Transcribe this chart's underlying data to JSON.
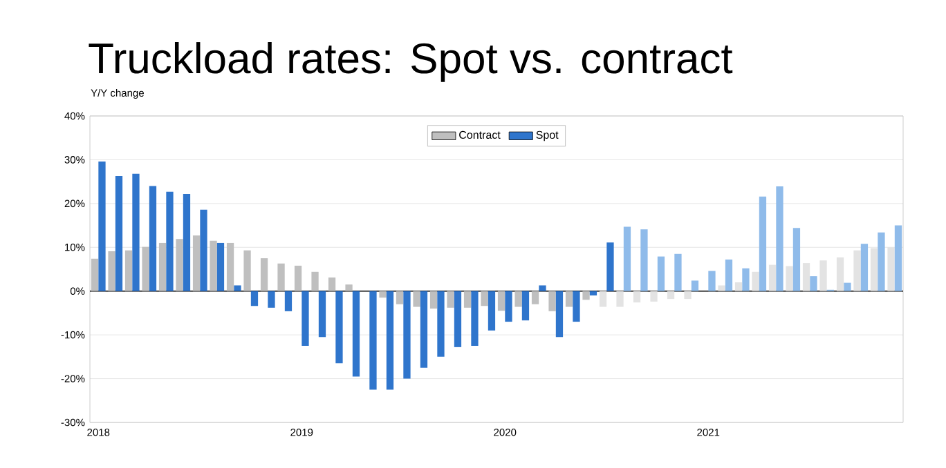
{
  "chart_data": {
    "type": "bar",
    "title": "Truckload rates: Spot vs. contract",
    "ylabel": "Y/Y change",
    "categories": [
      "2018",
      null,
      null,
      null,
      null,
      null,
      null,
      null,
      null,
      null,
      null,
      null,
      "2019",
      null,
      null,
      null,
      null,
      null,
      null,
      null,
      null,
      null,
      null,
      null,
      "2020",
      null,
      null,
      null,
      null,
      null,
      null,
      null,
      null,
      null,
      null,
      null,
      "2021",
      null,
      null,
      null,
      null,
      null,
      null,
      null,
      null,
      null,
      null,
      null
    ],
    "series": [
      {
        "name": "Contract",
        "color": "#bfbfbf",
        "values": [
          7.4,
          9.1,
          9.3,
          10.1,
          11,
          11.9,
          12.7,
          11.5,
          11,
          9.3,
          7.5,
          6.3,
          5.8,
          4.4,
          3.1,
          1.5,
          null,
          -1.5,
          -3,
          -3.6,
          -4,
          -3.8,
          -3.8,
          -3.4,
          -4.5,
          -3.6,
          -3,
          -4.6,
          -3.6,
          -2,
          -3.6,
          -3.6,
          -2.6,
          -2.4,
          -1.8,
          -1.8,
          null,
          1.3,
          2,
          4.4,
          6,
          5.7,
          6.4,
          7,
          7.7,
          9.3,
          9.8,
          10
        ],
        "colors": [
          "#bfbfbf",
          "#bfbfbf",
          "#bfbfbf",
          "#bfbfbf",
          "#bfbfbf",
          "#bfbfbf",
          "#bfbfbf",
          "#bfbfbf",
          "#bfbfbf",
          "#bfbfbf",
          "#bfbfbf",
          "#bfbfbf",
          "#bfbfbf",
          "#bfbfbf",
          "#bfbfbf",
          "#bfbfbf",
          "#bfbfbf",
          "#bfbfbf",
          "#bfbfbf",
          "#bfbfbf",
          "#bfbfbf",
          "#bfbfbf",
          "#bfbfbf",
          "#bfbfbf",
          "#bfbfbf",
          "#bfbfbf",
          "#bfbfbf",
          "#bfbfbf",
          "#bfbfbf",
          "#bfbfbf",
          "#e3e3e3",
          "#e3e3e3",
          "#e3e3e3",
          "#e3e3e3",
          "#e3e3e3",
          "#e3e3e3",
          "#e3e3e3",
          "#e3e3e3",
          "#e3e3e3",
          "#e3e3e3",
          "#e3e3e3",
          "#e3e3e3",
          "#e3e3e3",
          "#e3e3e3",
          "#e3e3e3",
          "#e3e3e3",
          "#e3e3e3",
          "#e3e3e3"
        ]
      },
      {
        "name": "Spot",
        "color": "#2f75cc",
        "values": [
          29.6,
          26.3,
          26.8,
          24,
          22.7,
          22.2,
          18.6,
          11,
          1.3,
          -3.4,
          -3.8,
          -4.6,
          -12.5,
          -10.5,
          -16.5,
          -19.5,
          -22.5,
          -22.5,
          -20,
          -17.5,
          -15,
          -12.8,
          -12.5,
          -9,
          -7,
          -6.7,
          1.3,
          -10.5,
          -7,
          -1,
          11.1,
          14.7,
          14.1,
          7.9,
          8.5,
          2.4,
          4.6,
          7.2,
          5.2,
          21.6,
          23.9,
          14.4,
          3.4,
          0.3,
          1.9,
          10.8,
          13.4,
          15
        ],
        "colors": [
          "#2f75cc",
          "#2f75cc",
          "#2f75cc",
          "#2f75cc",
          "#2f75cc",
          "#2f75cc",
          "#2f75cc",
          "#2f75cc",
          "#2f75cc",
          "#2f75cc",
          "#2f75cc",
          "#2f75cc",
          "#2f75cc",
          "#2f75cc",
          "#2f75cc",
          "#2f75cc",
          "#2f75cc",
          "#2f75cc",
          "#2f75cc",
          "#2f75cc",
          "#2f75cc",
          "#2f75cc",
          "#2f75cc",
          "#2f75cc",
          "#2f75cc",
          "#2f75cc",
          "#2f75cc",
          "#2f75cc",
          "#2f75cc",
          "#2f75cc",
          "#2f75cc",
          "#8fbbea",
          "#8fbbea",
          "#8fbbea",
          "#8fbbea",
          "#8fbbea",
          "#8fbbea",
          "#8fbbea",
          "#8fbbea",
          "#8fbbea",
          "#8fbbea",
          "#8fbbea",
          "#8fbbea",
          "#8fbbea",
          "#8fbbea",
          "#8fbbea",
          "#8fbbea",
          "#8fbbea"
        ]
      }
    ],
    "ylim": [
      -30,
      40
    ],
    "yticks": [
      {
        "value": -30,
        "label": "-30%"
      },
      {
        "value": -20,
        "label": "-20%"
      },
      {
        "value": -10,
        "label": "-10%"
      },
      {
        "value": 0,
        "label": "0%"
      },
      {
        "value": 10,
        "label": "10%"
      },
      {
        "value": 20,
        "label": "20%"
      },
      {
        "value": 30,
        "label": "30%"
      },
      {
        "value": 40,
        "label": "40%"
      }
    ],
    "grid": "y",
    "legend": "top"
  }
}
